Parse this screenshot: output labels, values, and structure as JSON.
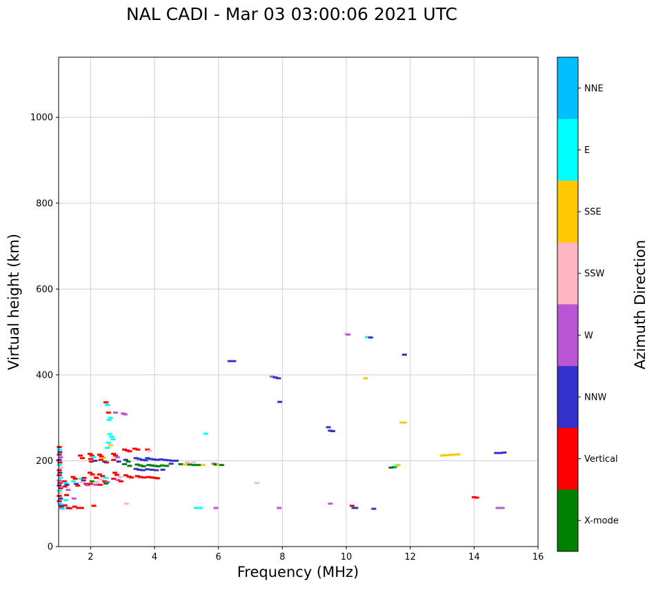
{
  "chart_data": {
    "type": "scatter",
    "title": "NAL CADI - Mar 03 03:00:06 2021 UTC",
    "xlabel": "Frequency (MHz)",
    "ylabel": "Virtual height (km)",
    "colorbar_label": "Azimuth Direction",
    "xlim": [
      1,
      16
    ],
    "ylim": [
      0,
      1140
    ],
    "x_ticks": [
      2,
      4,
      6,
      8,
      10,
      12,
      14,
      16
    ],
    "y_ticks": [
      0,
      200,
      400,
      600,
      800,
      1000
    ],
    "grid": true,
    "legend_position": "right-colorbar",
    "legend": [
      {
        "label": "NNE",
        "color": "#00BFFF"
      },
      {
        "label": "E",
        "color": "#00FFFF"
      },
      {
        "label": "SSE",
        "color": "#FFC800"
      },
      {
        "label": "SSW",
        "color": "#FFB6C1"
      },
      {
        "label": "W",
        "color": "#BA55D3"
      },
      {
        "label": "NNW",
        "color": "#3333CC"
      },
      {
        "label": "Vertical",
        "color": "#FF0000"
      },
      {
        "label": "X-mode",
        "color": "#008000"
      }
    ],
    "points": [
      [
        1.02,
        232,
        "Vertical"
      ],
      [
        1.02,
        226,
        "E"
      ],
      [
        1.04,
        220,
        "NNW"
      ],
      [
        1.02,
        214,
        "Vertical"
      ],
      [
        1.06,
        208,
        "W"
      ],
      [
        1.02,
        202,
        "NNW"
      ],
      [
        1.04,
        196,
        "Vertical"
      ],
      [
        1.02,
        190,
        "E"
      ],
      [
        1.06,
        184,
        "SSW"
      ],
      [
        1.02,
        178,
        "Vertical"
      ],
      [
        1.04,
        172,
        "NNW"
      ],
      [
        1.02,
        166,
        "Vertical"
      ],
      [
        1.06,
        160,
        "E"
      ],
      [
        1.02,
        154,
        "W"
      ],
      [
        1.04,
        148,
        "Vertical"
      ],
      [
        1.02,
        142,
        "NNW"
      ],
      [
        1.06,
        136,
        "Vertical"
      ],
      [
        1.02,
        130,
        "E"
      ],
      [
        1.04,
        124,
        "SSW"
      ],
      [
        1.02,
        118,
        "Vertical"
      ],
      [
        1.06,
        112,
        "NNW"
      ],
      [
        1.02,
        106,
        "Vertical"
      ],
      [
        1.04,
        100,
        "E"
      ],
      [
        1.08,
        95,
        "NNW"
      ],
      [
        1.1,
        90,
        "Vertical"
      ],
      [
        1.12,
        88,
        "E"
      ],
      [
        1.18,
        152,
        "Vertical"
      ],
      [
        1.22,
        148,
        "E"
      ],
      [
        1.26,
        144,
        "NNW"
      ],
      [
        1.2,
        140,
        "Vertical"
      ],
      [
        1.3,
        132,
        "W"
      ],
      [
        1.25,
        120,
        "Vertical"
      ],
      [
        1.22,
        108,
        "E"
      ],
      [
        1.2,
        96,
        "Vertical"
      ],
      [
        1.3,
        90,
        "NNW"
      ],
      [
        1.35,
        89,
        "Vertical"
      ],
      [
        1.45,
        162,
        "Vertical"
      ],
      [
        1.52,
        158,
        "Vertical"
      ],
      [
        1.46,
        152,
        "E"
      ],
      [
        1.55,
        146,
        "NNW"
      ],
      [
        1.6,
        142,
        "Vertical"
      ],
      [
        1.48,
        112,
        "W"
      ],
      [
        1.5,
        93,
        "Vertical"
      ],
      [
        1.62,
        90,
        "Vertical"
      ],
      [
        1.68,
        212,
        "Vertical"
      ],
      [
        1.74,
        206,
        "Vertical"
      ],
      [
        1.7,
        158,
        "E"
      ],
      [
        1.78,
        154,
        "NNW"
      ],
      [
        1.74,
        150,
        "SSW"
      ],
      [
        1.86,
        146,
        "Vertical"
      ],
      [
        1.8,
        160,
        "Vertical"
      ],
      [
        1.72,
        90,
        "Vertical"
      ],
      [
        1.9,
        143,
        "W"
      ],
      [
        1.98,
        216,
        "Vertical"
      ],
      [
        2.04,
        212,
        "Vertical"
      ],
      [
        2.1,
        208,
        "E"
      ],
      [
        2.0,
        204,
        "Vertical"
      ],
      [
        2.14,
        200,
        "NNW"
      ],
      [
        2.02,
        198,
        "Vertical"
      ],
      [
        1.98,
        172,
        "Vertical"
      ],
      [
        2.06,
        168,
        "Vertical"
      ],
      [
        2.12,
        164,
        "SSW"
      ],
      [
        2.18,
        160,
        "Vertical"
      ],
      [
        2.04,
        152,
        "X-mode"
      ],
      [
        2.2,
        150,
        "SSW"
      ],
      [
        2.0,
        146,
        "Vertical"
      ],
      [
        2.16,
        144,
        "W"
      ],
      [
        2.1,
        95,
        "Vertical"
      ],
      [
        2.28,
        214,
        "Vertical"
      ],
      [
        2.34,
        210,
        "Vertical"
      ],
      [
        2.4,
        206,
        "SSE"
      ],
      [
        2.32,
        202,
        "Vertical"
      ],
      [
        2.44,
        198,
        "NNW"
      ],
      [
        2.5,
        196,
        "Vertical"
      ],
      [
        2.28,
        168,
        "Vertical"
      ],
      [
        2.38,
        164,
        "Vertical"
      ],
      [
        2.48,
        160,
        "E"
      ],
      [
        2.34,
        156,
        "SSW"
      ],
      [
        2.44,
        152,
        "Vertical"
      ],
      [
        2.52,
        150,
        "W"
      ],
      [
        2.48,
        147,
        "X-mode"
      ],
      [
        2.3,
        144,
        "Vertical"
      ],
      [
        2.48,
        336,
        "Vertical"
      ],
      [
        2.52,
        330,
        "E"
      ],
      [
        2.56,
        312,
        "Vertical"
      ],
      [
        2.62,
        300,
        "E"
      ],
      [
        2.58,
        295,
        "E"
      ],
      [
        2.6,
        262,
        "E"
      ],
      [
        2.66,
        256,
        "E"
      ],
      [
        2.56,
        242,
        "E"
      ],
      [
        2.62,
        236,
        "SSE"
      ],
      [
        2.52,
        230,
        "E"
      ],
      [
        2.7,
        250,
        "E"
      ],
      [
        2.72,
        216,
        "Vertical"
      ],
      [
        2.78,
        212,
        "Vertical"
      ],
      [
        2.84,
        208,
        "W"
      ],
      [
        2.72,
        202,
        "Vertical"
      ],
      [
        2.88,
        198,
        "NNW"
      ],
      [
        2.76,
        172,
        "Vertical"
      ],
      [
        2.82,
        167,
        "Vertical"
      ],
      [
        2.92,
        162,
        "SSW"
      ],
      [
        2.72,
        158,
        "Vertical"
      ],
      [
        2.86,
        155,
        "W"
      ],
      [
        2.95,
        152,
        "Vertical"
      ],
      [
        2.78,
        312,
        "W"
      ],
      [
        3.02,
        310,
        "W"
      ],
      [
        3.08,
        308,
        "W"
      ],
      [
        3.06,
        226,
        "Vertical"
      ],
      [
        3.14,
        224,
        "Vertical"
      ],
      [
        3.22,
        222,
        "Vertical"
      ],
      [
        3.1,
        202,
        "NNW"
      ],
      [
        3.18,
        198,
        "X-mode"
      ],
      [
        3.06,
        192,
        "X-mode"
      ],
      [
        3.22,
        188,
        "X-mode"
      ],
      [
        3.1,
        166,
        "Vertical"
      ],
      [
        3.2,
        163,
        "Vertical"
      ],
      [
        3.28,
        161,
        "Vertical"
      ],
      [
        3.12,
        100,
        "SSW"
      ],
      [
        3.38,
        228,
        "Vertical"
      ],
      [
        3.48,
        226,
        "Vertical"
      ],
      [
        3.42,
        206,
        "NNW"
      ],
      [
        3.52,
        204,
        "NNW"
      ],
      [
        3.62,
        202,
        "NNW"
      ],
      [
        3.72,
        201,
        "NNW"
      ],
      [
        3.46,
        191,
        "X-mode"
      ],
      [
        3.56,
        189,
        "X-mode"
      ],
      [
        3.66,
        187,
        "X-mode"
      ],
      [
        3.42,
        181,
        "NNW"
      ],
      [
        3.52,
        179,
        "NNW"
      ],
      [
        3.64,
        178,
        "NNW"
      ],
      [
        3.46,
        164,
        "Vertical"
      ],
      [
        3.56,
        162,
        "Vertical"
      ],
      [
        3.68,
        161,
        "Vertical"
      ],
      [
        3.78,
        226,
        "Vertical"
      ],
      [
        3.84,
        223,
        "SSW"
      ],
      [
        3.78,
        206,
        "NNW"
      ],
      [
        3.88,
        204,
        "NNW"
      ],
      [
        3.98,
        203,
        "NNW"
      ],
      [
        4.08,
        202,
        "NNW"
      ],
      [
        3.82,
        190,
        "X-mode"
      ],
      [
        3.92,
        189,
        "X-mode"
      ],
      [
        4.02,
        188,
        "X-mode"
      ],
      [
        4.12,
        187,
        "X-mode"
      ],
      [
        3.78,
        180,
        "NNW"
      ],
      [
        3.92,
        179,
        "NNW"
      ],
      [
        4.06,
        178,
        "NNW"
      ],
      [
        3.82,
        162,
        "Vertical"
      ],
      [
        3.92,
        161,
        "Vertical"
      ],
      [
        4.02,
        160,
        "Vertical"
      ],
      [
        4.1,
        159,
        "Vertical"
      ],
      [
        4.2,
        203,
        "NNW"
      ],
      [
        4.32,
        202,
        "NNW"
      ],
      [
        4.44,
        201,
        "NNW"
      ],
      [
        4.56,
        200,
        "NNW"
      ],
      [
        4.68,
        200,
        "NNW"
      ],
      [
        4.24,
        189,
        "X-mode"
      ],
      [
        4.38,
        188,
        "X-mode"
      ],
      [
        4.52,
        193,
        "NNW"
      ],
      [
        4.26,
        179,
        "NNW"
      ],
      [
        4.82,
        192,
        "X-mode"
      ],
      [
        4.96,
        191,
        "SSE"
      ],
      [
        5.1,
        191,
        "X-mode"
      ],
      [
        5.24,
        190,
        "X-mode"
      ],
      [
        5.38,
        190,
        "X-mode"
      ],
      [
        5.52,
        190,
        "SSE"
      ],
      [
        5.02,
        196,
        "SSW"
      ],
      [
        5.22,
        196,
        "SSW"
      ],
      [
        5.86,
        193,
        "W"
      ],
      [
        5.92,
        191,
        "X-mode"
      ],
      [
        6.02,
        190,
        "SSE"
      ],
      [
        6.1,
        190,
        "X-mode"
      ],
      [
        5.6,
        263,
        "E"
      ],
      [
        5.3,
        90,
        "E"
      ],
      [
        5.44,
        90,
        "E"
      ],
      [
        5.92,
        90,
        "W"
      ],
      [
        6.36,
        432,
        "NNW"
      ],
      [
        6.48,
        432,
        "NNW"
      ],
      [
        7.2,
        148,
        "SSW"
      ],
      [
        7.68,
        396,
        "W"
      ],
      [
        7.78,
        394,
        "NNW"
      ],
      [
        7.88,
        392,
        "NNW"
      ],
      [
        7.92,
        337,
        "NNW"
      ],
      [
        7.9,
        90,
        "W"
      ],
      [
        9.44,
        278,
        "NNW"
      ],
      [
        9.5,
        270,
        "NNW"
      ],
      [
        9.58,
        269,
        "NNW"
      ],
      [
        9.5,
        100,
        "W"
      ],
      [
        10.0,
        495,
        "SSW"
      ],
      [
        10.06,
        494,
        "W"
      ],
      [
        10.18,
        95,
        "Vertical"
      ],
      [
        10.24,
        90,
        "NNW"
      ],
      [
        10.3,
        90,
        "NNW"
      ],
      [
        10.6,
        392,
        "SSE"
      ],
      [
        10.66,
        488,
        "E"
      ],
      [
        10.76,
        487,
        "NNW"
      ],
      [
        10.86,
        88,
        "NNW"
      ],
      [
        11.4,
        184,
        "X-mode"
      ],
      [
        11.5,
        185,
        "X-mode"
      ],
      [
        11.56,
        188,
        "E"
      ],
      [
        11.62,
        190,
        "SSE"
      ],
      [
        11.82,
        447,
        "NNW"
      ],
      [
        11.74,
        289,
        "SSE"
      ],
      [
        11.82,
        289,
        "SSE"
      ],
      [
        13.0,
        212,
        "SSE"
      ],
      [
        13.1,
        213,
        "SSE"
      ],
      [
        13.2,
        213,
        "SSE"
      ],
      [
        13.3,
        214,
        "SSE"
      ],
      [
        13.4,
        214,
        "SSE"
      ],
      [
        13.5,
        215,
        "SSE"
      ],
      [
        14.0,
        115,
        "Vertical"
      ],
      [
        14.08,
        114,
        "Vertical"
      ],
      [
        14.7,
        218,
        "NNW"
      ],
      [
        14.82,
        218,
        "NNW"
      ],
      [
        14.94,
        219,
        "NNW"
      ],
      [
        14.75,
        90,
        "W"
      ],
      [
        14.88,
        90,
        "W"
      ]
    ]
  }
}
